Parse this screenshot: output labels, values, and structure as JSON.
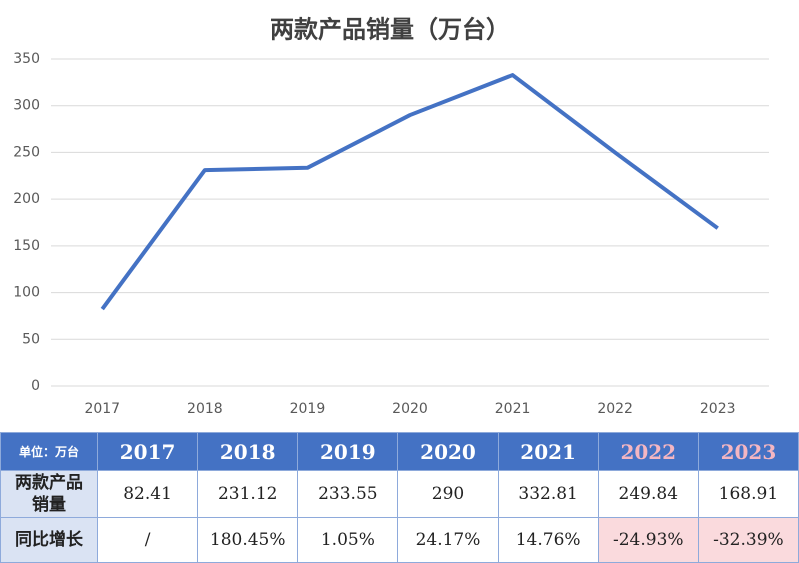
{
  "chart_data": {
    "type": "line",
    "title": "两款产品销量（万台）",
    "categories": [
      "2017",
      "2018",
      "2019",
      "2020",
      "2021",
      "2022",
      "2023"
    ],
    "values": [
      82.41,
      231.12,
      233.55,
      290,
      332.81,
      249.84,
      168.91
    ],
    "color": "#4472c4",
    "ylim": [
      0,
      350
    ],
    "yticks": [
      0,
      50,
      100,
      150,
      200,
      250,
      300,
      350
    ],
    "grid": true
  },
  "table": {
    "header": [
      "单位：万台",
      "2017",
      "2018",
      "2019",
      "2020",
      "2021",
      "2022",
      "2023"
    ],
    "rows": [
      [
        "两款产品销量",
        "82.41",
        "231.12",
        "233.55",
        "290",
        "332.81",
        "249.84",
        "168.91"
      ],
      [
        "同比增长",
        "/",
        "180.45%",
        "1.05%",
        "24.17%",
        "14.76%",
        "-24.93%",
        "-32.39%"
      ]
    ]
  }
}
